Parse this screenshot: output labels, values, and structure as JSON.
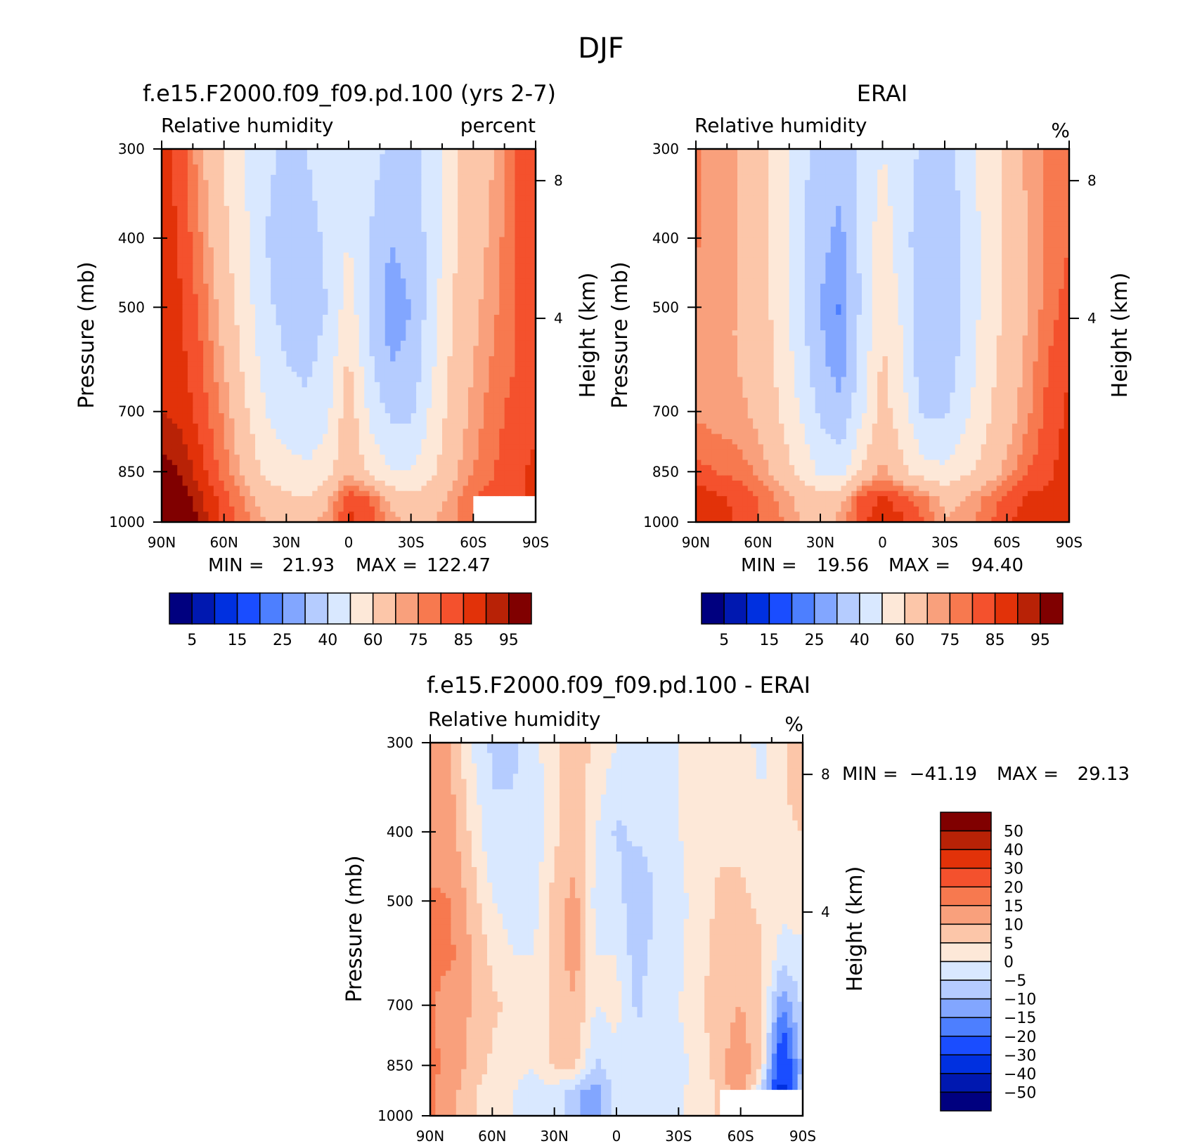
{
  "figure": {
    "title": "DJF",
    "colors": {
      "full_palette": [
        "#00007f",
        "#0018b0",
        "#0030e0",
        "#1a4dff",
        "#4d7fff",
        "#82a6ff",
        "#b5ccff",
        "#d9e8ff",
        "#fde8d8",
        "#fcc6a9",
        "#f9a07c",
        "#f7794f",
        "#f4512d",
        "#e23209",
        "#b82206",
        "#800000"
      ],
      "diff_palette": [
        "#00007f",
        "#0018b0",
        "#0030e0",
        "#1a4dff",
        "#4d7fff",
        "#82a6ff",
        "#b5ccff",
        "#d9e8ff",
        "#fde8d8",
        "#fcc6a9",
        "#f9a07c",
        "#f7794f",
        "#f4512d",
        "#e23209",
        "#b82206",
        "#800000"
      ],
      "missing": "#ffffff"
    }
  },
  "chart_data": [
    {
      "type": "heatmap",
      "title": "f.e15.F2000.f09_f09.pd.100 (yrs 2-7)",
      "subtitle_left": "Relative humidity",
      "subtitle_right": "percent",
      "ylabel": "Pressure (mb)",
      "ylabel_right": "Height (km)",
      "x_ticks": [
        "90N",
        "60N",
        "30N",
        "0",
        "30S",
        "60S",
        "90S"
      ],
      "y_ticks": [
        "300",
        "400",
        "500",
        "700",
        "850",
        "1000"
      ],
      "y_ticks_right": [
        "8",
        "4"
      ],
      "y_scale": "log",
      "ylim": [
        1000,
        300
      ],
      "min_label": "MIN =",
      "min_value": "21.93",
      "max_label": "MAX =",
      "max_value": "122.47",
      "colorbar_orientation": "horizontal",
      "colorbar_labels": [
        "5",
        "15",
        "25",
        "40",
        "60",
        "75",
        "85",
        "95"
      ],
      "lat": [
        -90,
        -80,
        -70,
        -60,
        -50,
        -40,
        -30,
        -20,
        -10,
        0,
        10,
        20,
        30,
        40,
        50,
        60,
        70,
        80,
        90
      ],
      "lev": [
        300,
        400,
        500,
        600,
        700,
        850,
        925,
        1000
      ],
      "values": [
        [
          85,
          80,
          70,
          65,
          58,
          45,
          36,
          38,
          44,
          50,
          46,
          40,
          38,
          42,
          50,
          60,
          70,
          82,
          88
        ],
        [
          85,
          80,
          72,
          66,
          58,
          44,
          33,
          30,
          40,
          50,
          42,
          36,
          36,
          40,
          52,
          62,
          74,
          84,
          88
        ],
        [
          84,
          80,
          74,
          68,
          60,
          45,
          30,
          26,
          38,
          56,
          40,
          36,
          37,
          42,
          55,
          66,
          78,
          85,
          88
        ],
        [
          84,
          80,
          76,
          70,
          62,
          48,
          32,
          30,
          42,
          62,
          44,
          38,
          40,
          46,
          58,
          70,
          80,
          86,
          88
        ],
        [
          84,
          82,
          78,
          72,
          64,
          52,
          38,
          38,
          48,
          66,
          48,
          42,
          44,
          50,
          62,
          74,
          82,
          88,
          90
        ],
        [
          86,
          84,
          80,
          75,
          68,
          58,
          50,
          50,
          58,
          70,
          56,
          52,
          54,
          58,
          68,
          78,
          86,
          94,
          98
        ],
        [
          86,
          84,
          82,
          80,
          72,
          65,
          62,
          68,
          80,
          84,
          68,
          60,
          62,
          66,
          74,
          82,
          90,
          98,
          108
        ],
        [
          86,
          84,
          82,
          80,
          74,
          70,
          68,
          74,
          84,
          86,
          74,
          66,
          64,
          70,
          78,
          84,
          92,
          104,
          115
        ]
      ],
      "masked_region": {
        "lat_range": [
          -90,
          -60
        ],
        "lev_range": [
          925,
          1000
        ]
      }
    },
    {
      "type": "heatmap",
      "title": "ERAI",
      "subtitle_left": "Relative humidity",
      "subtitle_right": "%",
      "ylabel": "Pressure (mb)",
      "ylabel_right": "Height (km)",
      "x_ticks": [
        "90N",
        "60N",
        "30N",
        "0",
        "30S",
        "60S",
        "90S"
      ],
      "y_ticks": [
        "300",
        "400",
        "500",
        "700",
        "850",
        "1000"
      ],
      "y_ticks_right": [
        "8",
        "4"
      ],
      "y_scale": "log",
      "ylim": [
        1000,
        300
      ],
      "min_label": "MIN =",
      "min_value": "19.56",
      "max_label": "MAX =",
      "max_value": "94.40",
      "colorbar_orientation": "horizontal",
      "colorbar_labels": [
        "5",
        "15",
        "25",
        "40",
        "60",
        "75",
        "85",
        "95"
      ],
      "lat": [
        -90,
        -80,
        -70,
        -60,
        -50,
        -40,
        -30,
        -20,
        -10,
        0,
        10,
        20,
        30,
        40,
        50,
        60,
        70,
        80,
        90
      ],
      "lev": [
        300,
        400,
        500,
        600,
        700,
        850,
        925,
        1000
      ],
      "values": [
        [
          75,
          76,
          72,
          62,
          55,
          44,
          36,
          38,
          44,
          50,
          42,
          32,
          34,
          44,
          56,
          66,
          70,
          72,
          76
        ],
        [
          80,
          76,
          70,
          62,
          54,
          42,
          33,
          33,
          44,
          56,
          42,
          28,
          32,
          44,
          56,
          66,
          70,
          72,
          76
        ],
        [
          82,
          78,
          70,
          62,
          54,
          42,
          32,
          30,
          48,
          58,
          42,
          24,
          30,
          44,
          56,
          66,
          70,
          70,
          72
        ],
        [
          85,
          80,
          72,
          64,
          56,
          44,
          34,
          32,
          50,
          62,
          44,
          26,
          32,
          46,
          58,
          66,
          70,
          70,
          72
        ],
        [
          86,
          82,
          74,
          66,
          58,
          48,
          38,
          38,
          54,
          64,
          48,
          32,
          38,
          50,
          60,
          68,
          72,
          72,
          74
        ],
        [
          88,
          84,
          80,
          72,
          64,
          58,
          52,
          54,
          62,
          72,
          62,
          46,
          48,
          58,
          66,
          74,
          78,
          80,
          82
        ],
        [
          90,
          86,
          86,
          82,
          76,
          70,
          68,
          76,
          82,
          86,
          82,
          68,
          64,
          68,
          74,
          80,
          84,
          86,
          88
        ],
        [
          90,
          86,
          88,
          84,
          78,
          72,
          70,
          80,
          86,
          88,
          84,
          72,
          66,
          70,
          76,
          80,
          84,
          88,
          90
        ]
      ]
    },
    {
      "type": "heatmap",
      "title": "f.e15.F2000.f09_f09.pd.100 - ERAI",
      "subtitle_left": "Relative humidity",
      "subtitle_right": "%",
      "ylabel": "Pressure (mb)",
      "ylabel_right": "Height (km)",
      "x_ticks": [
        "90N",
        "60N",
        "30N",
        "0",
        "30S",
        "60S",
        "90S"
      ],
      "y_ticks": [
        "300",
        "400",
        "500",
        "700",
        "850",
        "1000"
      ],
      "y_ticks_right": [
        "8",
        "4"
      ],
      "y_scale": "log",
      "ylim": [
        1000,
        300
      ],
      "min_label": "MIN =",
      "min_value": "−41.19",
      "max_label": "MAX =",
      "max_value": "29.13",
      "colorbar_orientation": "vertical",
      "colorbar_labels": [
        "50",
        "40",
        "30",
        "20",
        "15",
        "10",
        "5",
        "0",
        "−5",
        "−10",
        "−15",
        "−20",
        "−30",
        "−40",
        "−50"
      ],
      "lat": [
        -90,
        -80,
        -70,
        -60,
        -50,
        -40,
        -30,
        -20,
        -10,
        0,
        10,
        20,
        30,
        40,
        50,
        60,
        70,
        80,
        90
      ],
      "lev": [
        300,
        400,
        500,
        600,
        700,
        850,
        925,
        1000
      ],
      "values": [
        [
          10,
          4,
          -2,
          3,
          3,
          1,
          0,
          0,
          0,
          0,
          4,
          8,
          4,
          -2,
          -6,
          -6,
          0,
          10,
          12
        ],
        [
          5,
          4,
          2,
          4,
          4,
          2,
          0,
          -3,
          -4,
          -6,
          0,
          8,
          4,
          -4,
          -4,
          -4,
          4,
          12,
          12
        ],
        [
          2,
          2,
          4,
          6,
          6,
          3,
          -2,
          -4,
          -10,
          -2,
          -2,
          12,
          7,
          -2,
          -2,
          0,
          8,
          15,
          16
        ],
        [
          -1,
          -3,
          6,
          8,
          6,
          4,
          -2,
          -2,
          -8,
          0,
          0,
          12,
          8,
          0,
          0,
          4,
          10,
          16,
          16
        ],
        [
          -4,
          -15,
          6,
          10,
          8,
          4,
          0,
          0,
          -6,
          2,
          0,
          10,
          6,
          0,
          4,
          6,
          10,
          12,
          16
        ],
        [
          -8,
          -30,
          4,
          15,
          8,
          2,
          -2,
          -4,
          -4,
          -2,
          -6,
          6,
          6,
          0,
          2,
          4,
          8,
          14,
          16
        ],
        [
          -4,
          -35,
          -4,
          16,
          6,
          2,
          -1,
          -2,
          -2,
          -2,
          -14,
          -8,
          -2,
          -2,
          0,
          2,
          6,
          12,
          16
        ],
        [
          -4,
          -35,
          -4,
          16,
          6,
          2,
          -1,
          -2,
          -2,
          -2,
          -14,
          -8,
          -2,
          -2,
          0,
          2,
          6,
          12,
          16
        ]
      ],
      "masked_region": {
        "lat_range": [
          -90,
          -50
        ],
        "lev_range": [
          925,
          1000
        ]
      }
    }
  ]
}
